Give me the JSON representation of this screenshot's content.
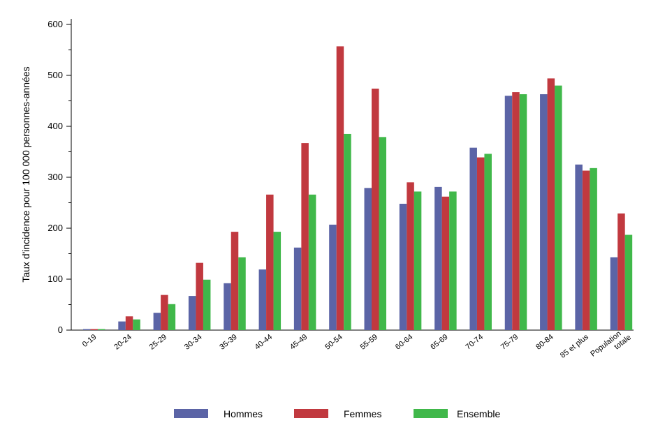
{
  "chart_data": {
    "type": "bar",
    "title": "",
    "xlabel": "",
    "ylabel": "Taux d'incidence pour 100 000 personnes-années",
    "ylim": [
      0,
      600
    ],
    "yticks": [
      0,
      100,
      200,
      300,
      400,
      500,
      600
    ],
    "grid": false,
    "legend_position": "bottom",
    "categories": [
      "0-19",
      "20-24",
      "25-29",
      "30-34",
      "35-39",
      "40-44",
      "45-49",
      "50-54",
      "55-59",
      "60-64",
      "65-69",
      "70-74",
      "75-79",
      "80-84",
      "85 et plus",
      "Population totale"
    ],
    "series": [
      {
        "name": "Hommes",
        "color": "#5b64a6",
        "values": [
          2,
          17,
          34,
          67,
          92,
          119,
          162,
          207,
          279,
          248,
          281,
          358,
          460,
          463,
          325,
          143
        ]
      },
      {
        "name": "Femmes",
        "color": "#c1393f",
        "values": [
          2,
          27,
          69,
          132,
          193,
          266,
          367,
          557,
          474,
          290,
          262,
          339,
          467,
          494,
          313,
          229
        ]
      },
      {
        "name": "Ensemble",
        "color": "#40b84a",
        "values": [
          2,
          21,
          51,
          99,
          143,
          193,
          266,
          385,
          379,
          272,
          272,
          346,
          463,
          480,
          318,
          187
        ]
      }
    ]
  }
}
